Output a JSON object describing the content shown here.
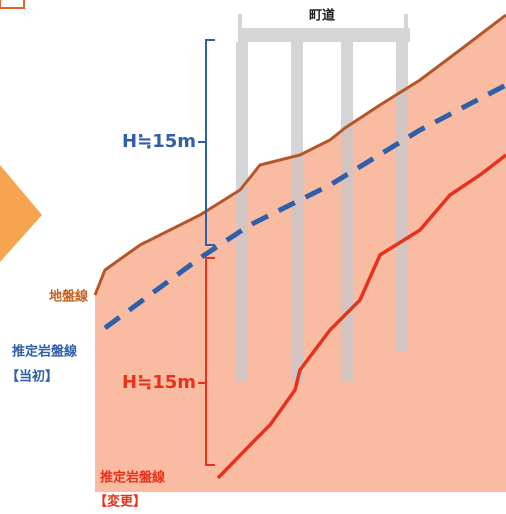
{
  "road_label": "町道",
  "original_height": "H≒15m",
  "revised_height": "H≒15m",
  "ground_line": "地盤線",
  "original_rock_line": {
    "name": "推定岩盤線",
    "tag": "【当初】"
  },
  "revised_rock_line": {
    "name": "推定岩盤線",
    "tag": "【変更】"
  }
}
